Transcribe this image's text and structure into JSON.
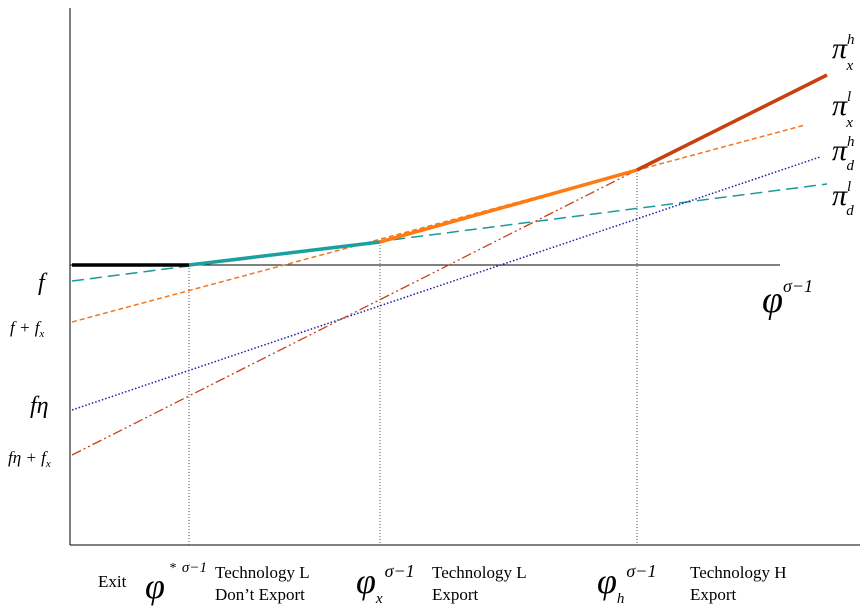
{
  "colors": {
    "axis": "#000000",
    "exit_segment": "#000000",
    "pi_d_l": "#1a9a9a",
    "pi_x_l": "#f07820",
    "pi_d_h": "#2020a0",
    "pi_x_h": "#c8401a",
    "envelope_low": "#1aa0a0",
    "envelope_mid": "#ff7a10",
    "envelope_high": "#c84010",
    "guide": "#555555"
  },
  "curves": [
    {
      "key": "pi_d_l",
      "label_base": "π",
      "label_sup": "l",
      "label_sub": "d",
      "intercept_label": "f",
      "style": "long-dash"
    },
    {
      "key": "pi_x_l",
      "label_base": "π",
      "label_sup": "l",
      "label_sub": "x",
      "intercept_label": "f + fx",
      "style": "short-dash"
    },
    {
      "key": "pi_d_h",
      "label_base": "π",
      "label_sup": "h",
      "label_sub": "d",
      "intercept_label": "fη",
      "style": "dotted"
    },
    {
      "key": "pi_x_h",
      "label_base": "π",
      "label_sup": "h",
      "label_sub": "x",
      "intercept_label": "fη + fx",
      "style": "dash-dot-dot"
    }
  ],
  "axis_label": {
    "base": "φ",
    "sup": "σ−1"
  },
  "thresholds": [
    {
      "base": "φ",
      "sub": "",
      "sup_prefix": "*",
      "sup": "σ−1"
    },
    {
      "base": "φ",
      "sub": "x",
      "sup_prefix": "",
      "sup": "σ−1"
    },
    {
      "base": "φ",
      "sub": "h",
      "sup_prefix": "",
      "sup": "σ−1"
    }
  ],
  "regions": [
    {
      "line1": "Exit",
      "line2": ""
    },
    {
      "line1": "Technology L",
      "line2": "Don’t Export"
    },
    {
      "line1": "Technology L",
      "line2": "Export"
    },
    {
      "line1": "Technology H",
      "line2": "Export"
    }
  ]
}
